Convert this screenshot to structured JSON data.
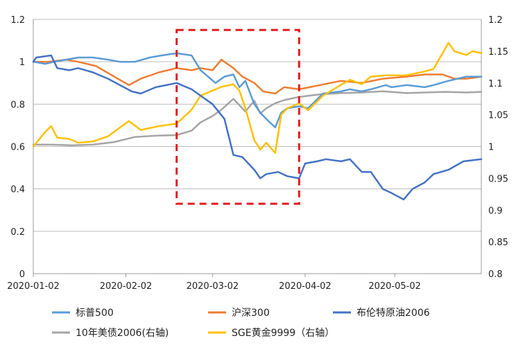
{
  "chart_data": {
    "type": "line",
    "title": "",
    "x_ticks": [
      "2020-01-02",
      "2020-02-02",
      "2020-03-02",
      "2020-04-02",
      "2020-05-02"
    ],
    "x_range": [
      "2020-01-02",
      "2020-05-31"
    ],
    "ylim_left": [
      0,
      1.2
    ],
    "yticks_left": [
      "0",
      "0.2",
      "0.4",
      "0.6",
      "0.8",
      "1",
      "1.2"
    ],
    "ylim_right": [
      0.8,
      1.2
    ],
    "yticks_right": [
      "0.8",
      "0.85",
      "0.9",
      "0.95",
      "1",
      "1.05",
      "1.1",
      "1.15",
      "1.2"
    ],
    "grid": "horizontal",
    "legend_position": "bottom",
    "annotation": {
      "shape": "dashed-rectangle",
      "color": "#e31a1c",
      "x_start": "2020-02-19",
      "x_end": "2020-03-31",
      "y_start": 0.33,
      "y_end": 1.15
    },
    "series": [
      {
        "name": "标普500",
        "axis": "left",
        "color": "#5b9bd5",
        "points": [
          [
            "2020-01-02",
            1.0
          ],
          [
            "2020-01-06",
            0.99
          ],
          [
            "2020-01-09",
            1.0
          ],
          [
            "2020-01-13",
            1.01
          ],
          [
            "2020-01-17",
            1.02
          ],
          [
            "2020-01-22",
            1.02
          ],
          [
            "2020-01-27",
            1.01
          ],
          [
            "2020-01-31",
            1.0
          ],
          [
            "2020-02-05",
            1.0
          ],
          [
            "2020-02-10",
            1.02
          ],
          [
            "2020-02-14",
            1.03
          ],
          [
            "2020-02-19",
            1.04
          ],
          [
            "2020-02-24",
            1.03
          ],
          [
            "2020-02-27",
            0.96
          ],
          [
            "2020-03-03",
            0.9
          ],
          [
            "2020-03-06",
            0.93
          ],
          [
            "2020-03-09",
            0.94
          ],
          [
            "2020-03-11",
            0.88
          ],
          [
            "2020-03-13",
            0.91
          ],
          [
            "2020-03-16,",
            0.8
          ],
          [
            "2020-03-18",
            0.76
          ],
          [
            "2020-03-20",
            0.73
          ],
          [
            "2020-03-23",
            0.69
          ],
          [
            "2020-03-25",
            0.76
          ],
          [
            "2020-03-27",
            0.78
          ],
          [
            "2020-03-31",
            0.79
          ],
          [
            "2020-04-03",
            0.78
          ],
          [
            "2020-04-08",
            0.85
          ],
          [
            "2020-04-14",
            0.86
          ],
          [
            "2020-04-17",
            0.87
          ],
          [
            "2020-04-21",
            0.86
          ],
          [
            "2020-04-24",
            0.87
          ],
          [
            "2020-04-29",
            0.89
          ],
          [
            "2020-05-01",
            0.88
          ],
          [
            "2020-05-06",
            0.89
          ],
          [
            "2020-05-12",
            0.88
          ],
          [
            "2020-05-15",
            0.89
          ],
          [
            "2020-05-20",
            0.91
          ],
          [
            "2020-05-26",
            0.93
          ],
          [
            "2020-05-31",
            0.93
          ]
        ]
      },
      {
        "name": "沪深300",
        "axis": "left",
        "color": "#ed7d31",
        "points": [
          [
            "2020-01-02",
            1.0
          ],
          [
            "2020-01-07",
            1.0
          ],
          [
            "2020-01-13",
            1.01
          ],
          [
            "2020-01-17",
            1.0
          ],
          [
            "2020-01-23",
            0.98
          ],
          [
            "2020-02-03",
            0.89
          ],
          [
            "2020-02-07",
            0.92
          ],
          [
            "2020-02-13",
            0.95
          ],
          [
            "2020-02-19",
            0.97
          ],
          [
            "2020-02-24",
            0.96
          ],
          [
            "2020-02-27",
            0.97
          ],
          [
            "2020-03-02",
            0.96
          ],
          [
            "2020-03-05",
            1.01
          ],
          [
            "2020-03-09",
            0.97
          ],
          [
            "2020-03-12",
            0.93
          ],
          [
            "2020-03-16",
            0.9
          ],
          [
            "2020-03-19",
            0.86
          ],
          [
            "2020-03-23",
            0.85
          ],
          [
            "2020-03-26",
            0.88
          ],
          [
            "2020-03-31",
            0.87
          ],
          [
            "2020-04-07",
            0.89
          ],
          [
            "2020-04-14",
            0.91
          ],
          [
            "2020-04-21",
            0.9
          ],
          [
            "2020-04-28",
            0.92
          ],
          [
            "2020-05-06",
            0.93
          ],
          [
            "2020-05-12",
            0.94
          ],
          [
            "2020-05-18",
            0.94
          ],
          [
            "2020-05-22",
            0.92
          ],
          [
            "2020-05-26",
            0.92
          ],
          [
            "2020-05-31",
            0.93
          ]
        ]
      },
      {
        "name": "布伦特原油2006",
        "axis": "left",
        "color": "#4472c4",
        "points": [
          [
            "2020-01-02",
            1.0
          ],
          [
            "2020-01-03",
            1.02
          ],
          [
            "2020-01-08",
            1.03
          ],
          [
            "2020-01-10",
            0.97
          ],
          [
            "2020-01-14",
            0.96
          ],
          [
            "2020-01-17",
            0.97
          ],
          [
            "2020-01-22",
            0.95
          ],
          [
            "2020-01-27",
            0.92
          ],
          [
            "2020-01-31",
            0.89
          ],
          [
            "2020-02-04",
            0.86
          ],
          [
            "2020-02-07",
            0.85
          ],
          [
            "2020-02-12",
            0.88
          ],
          [
            "2020-02-19",
            0.9
          ],
          [
            "2020-02-24",
            0.87
          ],
          [
            "2020-02-27",
            0.84
          ],
          [
            "2020-03-02",
            0.8
          ],
          [
            "2020-03-06",
            0.73
          ],
          [
            "2020-03-09",
            0.56
          ],
          [
            "2020-03-12",
            0.55
          ],
          [
            "2020-03-16",
            0.49
          ],
          [
            "2020-03-18",
            0.45
          ],
          [
            "2020-03-20",
            0.47
          ],
          [
            "2020-03-24",
            0.48
          ],
          [
            "2020-03-27",
            0.46
          ],
          [
            "2020-03-31",
            0.45
          ],
          [
            "2020-04-02",
            0.52
          ],
          [
            "2020-04-06",
            0.53
          ],
          [
            "2020-04-09",
            0.54
          ],
          [
            "2020-04-14",
            0.53
          ],
          [
            "2020-04-17",
            0.54
          ],
          [
            "2020-04-21",
            0.48
          ],
          [
            "2020-04-24",
            0.48
          ],
          [
            "2020-04-28",
            0.4
          ],
          [
            "2020-05-01",
            0.38
          ],
          [
            "2020-05-05",
            0.35
          ],
          [
            "2020-05-08",
            0.4
          ],
          [
            "2020-05-12",
            0.43
          ],
          [
            "2020-05-15",
            0.47
          ],
          [
            "2020-05-20",
            0.49
          ],
          [
            "2020-05-25",
            0.53
          ],
          [
            "2020-05-31",
            0.54
          ]
        ]
      },
      {
        "name": "10年美债2006(右轴)",
        "axis": "right",
        "color": "#a5a5a5",
        "points": [
          [
            "2020-01-02",
            1.003
          ],
          [
            "2020-01-08",
            1.003
          ],
          [
            "2020-01-15",
            1.002
          ],
          [
            "2020-01-22",
            1.003
          ],
          [
            "2020-01-29",
            1.007
          ],
          [
            "2020-02-05",
            1.015
          ],
          [
            "2020-02-12",
            1.017
          ],
          [
            "2020-02-19",
            1.018
          ],
          [
            "2020-02-24",
            1.025
          ],
          [
            "2020-02-27",
            1.038
          ],
          [
            "2020-03-02",
            1.048
          ],
          [
            "2020-03-05",
            1.058
          ],
          [
            "2020-03-09",
            1.075
          ],
          [
            "2020-03-11",
            1.065
          ],
          [
            "2020-03-13",
            1.055
          ],
          [
            "2020-03-16",
            1.072
          ],
          [
            "2020-03-18",
            1.052
          ],
          [
            "2020-03-20",
            1.06
          ],
          [
            "2020-03-23",
            1.068
          ],
          [
            "2020-03-26",
            1.073
          ],
          [
            "2020-03-31",
            1.078
          ],
          [
            "2020-04-07",
            1.082
          ],
          [
            "2020-04-14",
            1.084
          ],
          [
            "2020-04-21",
            1.085
          ],
          [
            "2020-04-28",
            1.087
          ],
          [
            "2020-05-06",
            1.084
          ],
          [
            "2020-05-12",
            1.085
          ],
          [
            "2020-05-19",
            1.086
          ],
          [
            "2020-05-26",
            1.085
          ],
          [
            "2020-05-31",
            1.086
          ]
        ]
      },
      {
        "name": "SGE黄金9999（右轴）",
        "axis": "right",
        "color": "#ffc000",
        "points": [
          [
            "2020-01-02",
            1.0
          ],
          [
            "2020-01-06",
            1.023
          ],
          [
            "2020-01-08",
            1.032
          ],
          [
            "2020-01-10",
            1.014
          ],
          [
            "2020-01-14",
            1.012
          ],
          [
            "2020-01-17",
            1.006
          ],
          [
            "2020-01-22",
            1.008
          ],
          [
            "2020-01-27",
            1.016
          ],
          [
            "2020-02-03",
            1.04
          ],
          [
            "2020-02-07",
            1.026
          ],
          [
            "2020-02-13",
            1.032
          ],
          [
            "2020-02-19",
            1.036
          ],
          [
            "2020-02-24",
            1.058
          ],
          [
            "2020-02-27",
            1.08
          ],
          [
            "2020-03-02",
            1.088
          ],
          [
            "2020-03-05",
            1.094
          ],
          [
            "2020-03-09",
            1.098
          ],
          [
            "2020-03-11",
            1.088
          ],
          [
            "2020-03-13",
            1.06
          ],
          [
            "2020-03-16",
            1.01
          ],
          [
            "2020-03-18",
            0.995
          ],
          [
            "2020-03-20",
            1.006
          ],
          [
            "2020-03-23",
            0.99
          ],
          [
            "2020-03-25",
            1.05
          ],
          [
            "2020-03-27",
            1.06
          ],
          [
            "2020-03-31",
            1.068
          ],
          [
            "2020-04-03",
            1.057
          ],
          [
            "2020-04-08",
            1.08
          ],
          [
            "2020-04-14",
            1.097
          ],
          [
            "2020-04-17",
            1.105
          ],
          [
            "2020-04-21",
            1.098
          ],
          [
            "2020-04-24",
            1.11
          ],
          [
            "2020-04-29",
            1.112
          ],
          [
            "2020-05-06",
            1.112
          ],
          [
            "2020-05-12",
            1.118
          ],
          [
            "2020-05-15",
            1.122
          ],
          [
            "2020-05-20",
            1.163
          ],
          [
            "2020-05-22",
            1.15
          ],
          [
            "2020-05-26",
            1.144
          ],
          [
            "2020-05-28",
            1.15
          ],
          [
            "2020-05-31",
            1.147
          ]
        ]
      }
    ]
  }
}
